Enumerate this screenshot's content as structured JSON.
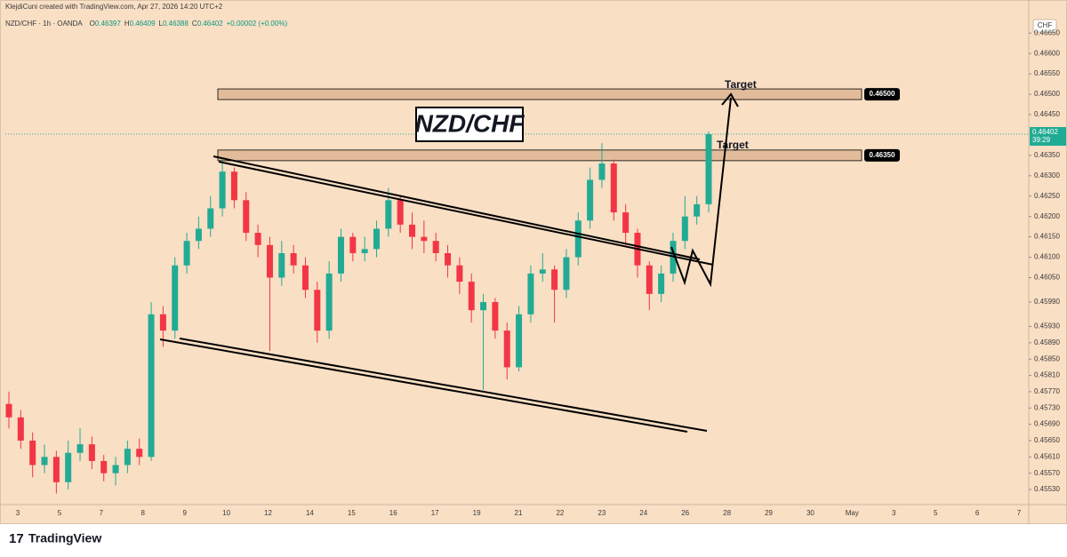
{
  "header": {
    "credit": "KlejdiCuni created with TradingView.com, Apr 27, 2026 14:20 UTC+2",
    "symbol": "NZD/CHF · 1h · OANDA",
    "ohlc": [
      {
        "key": "O",
        "value": "0.46397"
      },
      {
        "key": "H",
        "value": "0.46409"
      },
      {
        "key": "L",
        "value": "0.46388"
      },
      {
        "key": "C",
        "value": "0.46402"
      }
    ],
    "change": "+0.00002 (+0.00%)"
  },
  "chart_data": {
    "type": "candlestick",
    "title": "NZD/CHF",
    "currency": "CHF",
    "up_color": "#22ab94",
    "down_color": "#f23645",
    "open": [
      0.4574,
      0.45707,
      0.4565,
      0.4559,
      0.4561,
      0.45548,
      0.4562,
      0.45641,
      0.456,
      0.4557,
      0.4559,
      0.4563,
      0.4561,
      0.4596,
      0.4592,
      0.4608,
      0.4614,
      0.4617,
      0.4622,
      0.4631,
      0.4624,
      0.4616,
      0.4613,
      0.4605,
      0.4611,
      0.4608,
      0.4602,
      0.4592,
      0.4606,
      0.4615,
      0.4611,
      0.4612,
      0.4617,
      0.4624,
      0.4618,
      0.4615,
      0.4614,
      0.4611,
      0.4608,
      0.4604,
      0.4597,
      0.4599,
      0.4592,
      0.4583,
      0.4596,
      0.4606,
      0.4607,
      0.4602,
      0.461,
      0.4619,
      0.4629,
      0.4633,
      0.4621,
      0.4616,
      0.4608,
      0.4601,
      0.4606,
      0.4614,
      0.462,
      0.4623
    ],
    "high": [
      0.4577,
      0.45725,
      0.4567,
      0.4564,
      0.45625,
      0.4565,
      0.4568,
      0.4566,
      0.45615,
      0.4561,
      0.4565,
      0.45655,
      0.4599,
      0.4598,
      0.461,
      0.4616,
      0.462,
      0.4625,
      0.4634,
      0.4632,
      0.4626,
      0.4618,
      0.4615,
      0.4614,
      0.4613,
      0.461,
      0.4604,
      0.4609,
      0.4617,
      0.4616,
      0.4615,
      0.4619,
      0.4627,
      0.4625,
      0.4621,
      0.4619,
      0.4616,
      0.4613,
      0.461,
      0.4606,
      0.4601,
      0.46,
      0.4594,
      0.4598,
      0.4608,
      0.4611,
      0.4608,
      0.4612,
      0.4621,
      0.4632,
      0.4638,
      0.4634,
      0.4623,
      0.4617,
      0.4609,
      0.4608,
      0.4616,
      0.4625,
      0.4625,
      0.46409
    ],
    "low": [
      0.4568,
      0.4563,
      0.4556,
      0.4557,
      0.4552,
      0.4553,
      0.456,
      0.4558,
      0.4555,
      0.4554,
      0.4557,
      0.4559,
      0.456,
      0.4588,
      0.459,
      0.4606,
      0.4612,
      0.4615,
      0.462,
      0.4622,
      0.4614,
      0.461,
      0.4587,
      0.4603,
      0.4606,
      0.46,
      0.4589,
      0.459,
      0.4604,
      0.4609,
      0.4609,
      0.461,
      0.4615,
      0.4616,
      0.4612,
      0.4611,
      0.4609,
      0.4605,
      0.4601,
      0.4594,
      0.45775,
      0.459,
      0.458,
      0.4582,
      0.4594,
      0.4604,
      0.4594,
      0.46,
      0.4608,
      0.4617,
      0.4627,
      0.4619,
      0.4613,
      0.4605,
      0.4597,
      0.4599,
      0.4604,
      0.4612,
      0.4618,
      0.4621
    ],
    "close": [
      0.45707,
      0.4565,
      0.4559,
      0.4561,
      0.45548,
      0.4562,
      0.45641,
      0.456,
      0.4557,
      0.4559,
      0.4563,
      0.4561,
      0.4596,
      0.4592,
      0.4608,
      0.4614,
      0.4617,
      0.4622,
      0.4631,
      0.4624,
      0.4616,
      0.4613,
      0.4605,
      0.4611,
      0.4608,
      0.4602,
      0.4592,
      0.4606,
      0.4615,
      0.4611,
      0.4612,
      0.4617,
      0.4624,
      0.4618,
      0.4615,
      0.4614,
      0.4611,
      0.4608,
      0.4604,
      0.4597,
      0.4599,
      0.4592,
      0.4583,
      0.4596,
      0.4606,
      0.4607,
      0.4602,
      0.461,
      0.4619,
      0.4629,
      0.4633,
      0.4621,
      0.4616,
      0.4608,
      0.4601,
      0.4606,
      0.4614,
      0.462,
      0.4623,
      0.46402
    ],
    "ylim": [
      0.45493,
      0.46692
    ],
    "yticks": [
      {
        "value": 0.4665,
        "label": "0.46650"
      },
      {
        "value": 0.466,
        "label": "0.46600"
      },
      {
        "value": 0.4655,
        "label": "0.46550"
      },
      {
        "value": 0.465,
        "label": "0.46500"
      },
      {
        "value": 0.4645,
        "label": "0.46450"
      },
      {
        "value": 0.4635,
        "label": "0.46350"
      },
      {
        "value": 0.463,
        "label": "0.46300"
      },
      {
        "value": 0.4625,
        "label": "0.46250"
      },
      {
        "value": 0.462,
        "label": "0.46200"
      },
      {
        "value": 0.4615,
        "label": "0.46150"
      },
      {
        "value": 0.461,
        "label": "0.46100"
      },
      {
        "value": 0.4605,
        "label": "0.46050"
      },
      {
        "value": 0.4599,
        "label": "0.45990"
      },
      {
        "value": 0.4593,
        "label": "0.45930"
      },
      {
        "value": 0.4589,
        "label": "0.45890"
      },
      {
        "value": 0.4585,
        "label": "0.45850"
      },
      {
        "value": 0.4581,
        "label": "0.45810"
      },
      {
        "value": 0.4577,
        "label": "0.45770"
      },
      {
        "value": 0.4573,
        "label": "0.45730"
      },
      {
        "value": 0.4569,
        "label": "0.45690"
      },
      {
        "value": 0.4565,
        "label": "0.45650"
      },
      {
        "value": 0.4561,
        "label": "0.45610"
      },
      {
        "value": 0.4557,
        "label": "0.45570"
      },
      {
        "value": 0.4553,
        "label": "0.45530"
      }
    ],
    "xticks": [
      "3",
      "5",
      "7",
      "8",
      "9",
      "10",
      "12",
      "14",
      "15",
      "16",
      "17",
      "19",
      "21",
      "22",
      "23",
      "24",
      "26",
      "28",
      "29",
      "30",
      "May",
      "3",
      "5",
      "6",
      "7"
    ],
    "levels": [
      {
        "value": 0.465,
        "label": "0.46500",
        "annotation": "Target"
      },
      {
        "value": 0.4635,
        "label": "0.46350",
        "annotation": "Target"
      }
    ],
    "last_price": {
      "value": 0.46402,
      "label": "0.46402",
      "countdown": "39:29"
    }
  },
  "footer": {
    "brand": "TradingView"
  }
}
